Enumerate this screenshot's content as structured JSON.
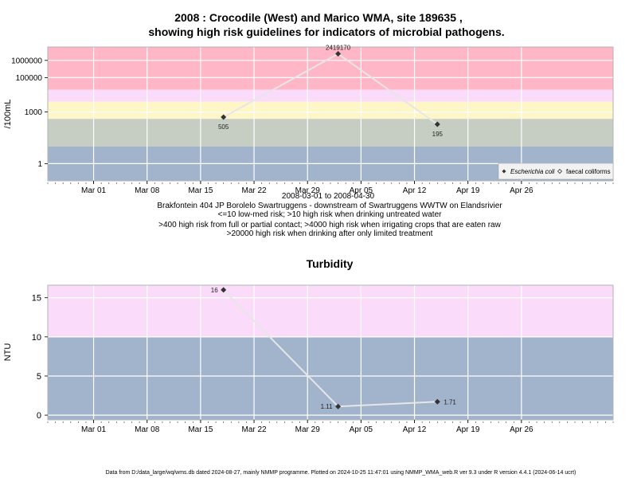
{
  "caption": "Data from D:/data_large/wq/wms.db dated 2024-08-27, mainly NMMP programme. Plotted on 2024-10-25 11:47:01 using NMMP_WMA_web.R ver 9.3 under R version 4.4.1 (2024-06-14 ucrt)",
  "colors": {
    "pink": "#ffb6c6",
    "lavender": "#fadcfa",
    "yellow": "#fff6c8",
    "sage": "#c6cec3",
    "blue": "#a2b3cc",
    "line": "#e6e6e6",
    "point": "#333333"
  },
  "chart_data": [
    {
      "type": "line",
      "title_line1": "2008 : Crocodile (West) and Marico WMA, site 189635 ,",
      "title_line2": "showing high risk guidelines for indicators of microbial pathogens.",
      "ylabel": "/100mL",
      "yscale": "log",
      "ylim": [
        0.1,
        6000000
      ],
      "xlim": [
        "2008-02-24",
        "2008-05-08"
      ],
      "y_ticks": [
        {
          "value": 1,
          "label": "1"
        },
        {
          "value": 1000,
          "label": "1000"
        },
        {
          "value": 100000,
          "label": "100000"
        },
        {
          "value": 1000000,
          "label": "1000000"
        }
      ],
      "x_ticks": [
        {
          "date": "2008-03-01",
          "label": "Mar 01"
        },
        {
          "date": "2008-03-08",
          "label": "Mar 08"
        },
        {
          "date": "2008-03-15",
          "label": "Mar 15"
        },
        {
          "date": "2008-03-22",
          "label": "Mar 22"
        },
        {
          "date": "2008-03-29",
          "label": "Mar 29"
        },
        {
          "date": "2008-04-05",
          "label": "Apr 05"
        },
        {
          "date": "2008-04-12",
          "label": "Apr 12"
        },
        {
          "date": "2008-04-19",
          "label": "Apr 19"
        },
        {
          "date": "2008-04-26",
          "label": "Apr 26"
        }
      ],
      "bands": [
        {
          "from": 20000,
          "to": 6000000,
          "color": "pink"
        },
        {
          "from": 4000,
          "to": 20000,
          "color": "lavender"
        },
        {
          "from": 400,
          "to": 4000,
          "color": "yellow"
        },
        {
          "from": 10,
          "to": 400,
          "color": "sage"
        },
        {
          "from": 0.1,
          "to": 10,
          "color": "blue"
        }
      ],
      "series": [
        {
          "name": "Escherichia coli",
          "points": [
            {
              "date": "2008-03-18",
              "value": 505,
              "label": "505",
              "label_pos": "below"
            },
            {
              "date": "2008-04-02",
              "value": 2419170,
              "label": "2419170",
              "label_pos": "above"
            },
            {
              "date": "2008-04-15",
              "value": 195,
              "label": "195",
              "label_pos": "below"
            }
          ]
        }
      ],
      "legend": {
        "placement": "bottom-right",
        "items": [
          {
            "label": "Escherichia coli",
            "symbol": "filled-diamond",
            "italic": true
          },
          {
            "label": "faecal coliforms",
            "symbol": "open-diamond",
            "italic": false
          }
        ]
      },
      "xlabel_lines": [
        "2008-03-01 to 2008-04-30",
        "Brakfontein 404 JP Borolelo Swartruggens - downstream of Swartruggens WWTW on Elandsrivier",
        "<=10 low-med risk; >10 high risk when drinking untreated water",
        ">400 high risk from full or partial contact; >4000 high risk when irrigating crops that are eaten raw",
        ">20000 high risk when drinking after only limited treatment"
      ]
    },
    {
      "type": "line",
      "title": "Turbidity",
      "ylabel": "NTU",
      "yscale": "linear",
      "ylim": [
        -0.6,
        16.6
      ],
      "xlim": [
        "2008-02-24",
        "2008-05-08"
      ],
      "y_ticks": [
        {
          "value": 0,
          "label": "0"
        },
        {
          "value": 5,
          "label": "5"
        },
        {
          "value": 10,
          "label": "10"
        },
        {
          "value": 15,
          "label": "15"
        }
      ],
      "x_ticks": [
        {
          "date": "2008-03-01",
          "label": "Mar 01"
        },
        {
          "date": "2008-03-08",
          "label": "Mar 08"
        },
        {
          "date": "2008-03-15",
          "label": "Mar 15"
        },
        {
          "date": "2008-03-22",
          "label": "Mar 22"
        },
        {
          "date": "2008-03-29",
          "label": "Mar 29"
        },
        {
          "date": "2008-04-05",
          "label": "Apr 05"
        },
        {
          "date": "2008-04-12",
          "label": "Apr 12"
        },
        {
          "date": "2008-04-19",
          "label": "Apr 19"
        },
        {
          "date": "2008-04-26",
          "label": "Apr 26"
        }
      ],
      "bands": [
        {
          "from": 10,
          "to": 16.6,
          "color": "lavender"
        },
        {
          "from": -0.6,
          "to": 10,
          "color": "blue"
        }
      ],
      "series": [
        {
          "points": [
            {
              "date": "2008-03-18",
              "value": 16,
              "label": "16",
              "label_pos": "left"
            },
            {
              "date": "2008-04-02",
              "value": 1.11,
              "label": "1.11",
              "label_pos": "left"
            },
            {
              "date": "2008-04-15",
              "value": 1.71,
              "label": "1.71",
              "label_pos": "right"
            }
          ]
        }
      ]
    }
  ]
}
